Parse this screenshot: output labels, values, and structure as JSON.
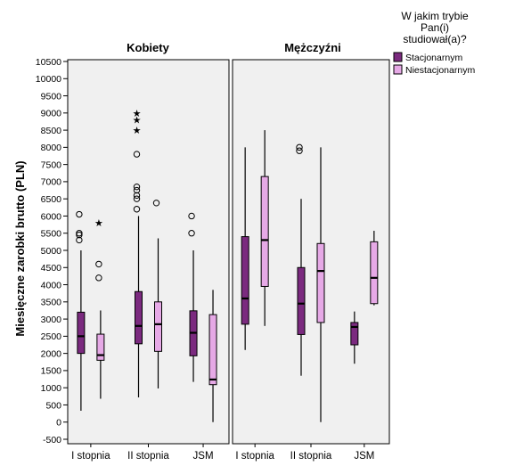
{
  "chart_data": {
    "type": "boxplot",
    "ylabel": "Miesięczne zarobki brutto (PLN)",
    "ylim": [
      -500,
      10500
    ],
    "yticks": [
      -500,
      0,
      500,
      1000,
      1500,
      2000,
      2500,
      3000,
      3500,
      4000,
      4500,
      5000,
      5500,
      6000,
      6500,
      7000,
      7500,
      8000,
      8500,
      9000,
      9500,
      10000,
      10500
    ],
    "categories": [
      "I stopnia",
      "II stopnia",
      "JSM"
    ],
    "legend": {
      "title": [
        "W jakim trybie",
        "Pan(i)",
        "studiował(a)?"
      ],
      "position": "top-right",
      "entries": [
        {
          "label": "Stacjonarnym",
          "color": "#7b2a7f"
        },
        {
          "label": "Niestacjonarnym",
          "color": "#e6a9e6"
        }
      ]
    },
    "grid": false,
    "panel_background": "#f0f0f0",
    "panels": [
      {
        "title": "Kobiety",
        "groups": [
          {
            "category": "I stopnia",
            "series": [
              {
                "name": "Stacjonarnym",
                "min": 330,
                "q1": 2000,
                "median": 2500,
                "q3": 3200,
                "max": 5000,
                "outliers": [
                  5300,
                  5450,
                  5500,
                  6050
                ],
                "extremes": []
              },
              {
                "name": "Niestacjonarnym",
                "min": 680,
                "q1": 1800,
                "median": 1950,
                "q3": 2560,
                "max": 3250,
                "outliers": [
                  4200,
                  4600
                ],
                "extremes": [
                  5800
                ]
              }
            ]
          },
          {
            "category": "II stopnia",
            "series": [
              {
                "name": "Stacjonarnym",
                "min": 720,
                "q1": 2280,
                "median": 2800,
                "q3": 3800,
                "max": 6000,
                "outliers": [
                  6200,
                  6500,
                  6600,
                  6750,
                  6850,
                  7800
                ],
                "extremes": [
                  8500,
                  8800,
                  9000
                ]
              },
              {
                "name": "Niestacjonarnym",
                "min": 980,
                "q1": 2060,
                "median": 2850,
                "q3": 3500,
                "max": 5350,
                "outliers": [
                  6380
                ],
                "extremes": []
              }
            ]
          },
          {
            "category": "JSM",
            "series": [
              {
                "name": "Stacjonarnym",
                "min": 1170,
                "q1": 1930,
                "median": 2600,
                "q3": 3240,
                "max": 5000,
                "outliers": [
                  5500,
                  6000
                ],
                "extremes": []
              },
              {
                "name": "Niestacjonarnym",
                "min": 0,
                "q1": 1090,
                "median": 1240,
                "q3": 3130,
                "max": 3850,
                "outliers": [],
                "extremes": []
              }
            ]
          }
        ]
      },
      {
        "title": "Mężczyźni",
        "groups": [
          {
            "category": "I stopnia",
            "series": [
              {
                "name": "Stacjonarnym",
                "min": 2100,
                "q1": 2850,
                "median": 3600,
                "q3": 5400,
                "max": 8000,
                "outliers": [],
                "extremes": []
              },
              {
                "name": "Niestacjonarnym",
                "min": 2800,
                "q1": 3950,
                "median": 5300,
                "q3": 7150,
                "max": 8500,
                "outliers": [],
                "extremes": []
              }
            ]
          },
          {
            "category": "II stopnia",
            "series": [
              {
                "name": "Stacjonarnym",
                "min": 1350,
                "q1": 2550,
                "median": 3450,
                "q3": 4500,
                "max": 6500,
                "outliers": [
                  7900,
                  8000
                ],
                "extremes": []
              },
              {
                "name": "Niestacjonarnym",
                "min": 0,
                "q1": 2900,
                "median": 4400,
                "q3": 5200,
                "max": 8000,
                "outliers": [],
                "extremes": []
              }
            ]
          },
          {
            "category": "JSM",
            "series": [
              {
                "name": "Stacjonarnym",
                "min": 1700,
                "q1": 2250,
                "median": 2770,
                "q3": 2900,
                "max": 3220,
                "outliers": [],
                "extremes": []
              },
              {
                "name": "Niestacjonarnym",
                "min": 3400,
                "q1": 3450,
                "median": 4200,
                "q3": 5250,
                "max": 5570,
                "outliers": [],
                "extremes": []
              }
            ]
          }
        ]
      }
    ]
  }
}
